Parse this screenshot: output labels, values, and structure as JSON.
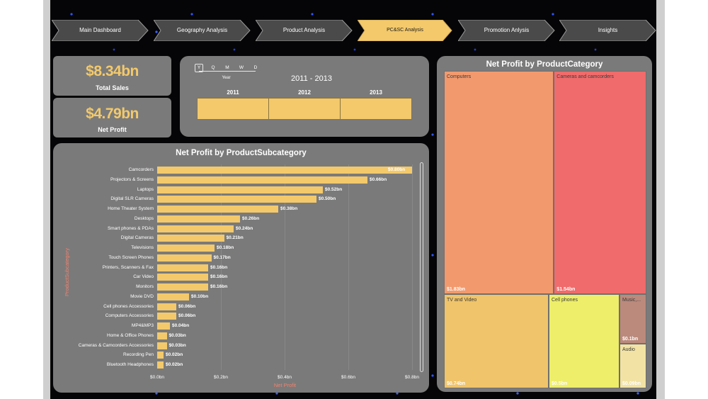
{
  "nav": {
    "items": [
      {
        "label": "Main Dashboard",
        "active": false
      },
      {
        "label": "Geography Analysis",
        "active": false
      },
      {
        "label": "Product Analysis",
        "active": false
      },
      {
        "label": "PC&SC Analysis",
        "active": true
      },
      {
        "label": "Promotion Anlysis",
        "active": false
      },
      {
        "label": "Insights",
        "active": false
      }
    ]
  },
  "kpis": {
    "total_sales": {
      "value": "$8.34bn",
      "label": "Total Sales"
    },
    "net_profit": {
      "value": "$4.79bn",
      "label": "Net Profit"
    }
  },
  "slicer": {
    "granularity": [
      "Y",
      "Q",
      "M",
      "W",
      "D"
    ],
    "selected_granularity": "Y",
    "granularity_label": "Year",
    "range_label": "2011 - 2013",
    "years": [
      "2011",
      "2012",
      "2013"
    ]
  },
  "colors": {
    "accent": "#f3c96b",
    "card": "#7a7a7a",
    "axis_title": "#f0826e"
  },
  "bar_chart": {
    "title": "Net Profit by ProductSubcategory",
    "y_axis_title": "ProductSubcategory",
    "x_axis_title": "Net Profit",
    "x_ticks": [
      "$0.0bn",
      "$0.2bn",
      "$0.4bn",
      "$0.6bn",
      "$0.8bn"
    ]
  },
  "treemap": {
    "title": "Net Profit by ProductCategory"
  },
  "chart_data": [
    {
      "type": "bar",
      "title": "Net Profit by ProductSubcategory",
      "xlabel": "Net Profit",
      "ylabel": "ProductSubcategory",
      "xlim": [
        0,
        0.8
      ],
      "categories": [
        "Camcorders",
        "Projectors & Screens",
        "Laptops",
        "Digital SLR Cameras",
        "Home Theater System",
        "Desktops",
        "Smart phones & PDAs",
        "Digital Cameras",
        "Televisions",
        "Touch Screen Phones",
        "Printers, Scanners & Fax",
        "Car Video",
        "Monitors",
        "Movie DVD",
        "Cell phones Accessories",
        "Computers Accessories",
        "MP4&MP3",
        "Home & Office Phones",
        "Cameras & Camcorders Accessories",
        "Recording Pen",
        "Bluetooth Headphones"
      ],
      "values": [
        0.8,
        0.66,
        0.52,
        0.5,
        0.38,
        0.26,
        0.24,
        0.21,
        0.18,
        0.17,
        0.16,
        0.16,
        0.16,
        0.1,
        0.06,
        0.06,
        0.04,
        0.03,
        0.03,
        0.02,
        0.02
      ],
      "value_labels": [
        "$0.80bn",
        "$0.66bn",
        "$0.52bn",
        "$0.50bn",
        "$0.38bn",
        "$0.26bn",
        "$0.24bn",
        "$0.21bn",
        "$0.18bn",
        "$0.17bn",
        "$0.16bn",
        "$0.16bn",
        "$0.16bn",
        "$0.10bn",
        "$0.06bn",
        "$0.06bn",
        "$0.04bn",
        "$0.03bn",
        "$0.03bn",
        "$0.02bn",
        "$0.02bn"
      ]
    },
    {
      "type": "treemap",
      "title": "Net Profit by ProductCategory",
      "categories": [
        "Computers",
        "Cameras and camcorders",
        "TV and Video",
        "Cell phones",
        "Music,...",
        "Audio"
      ],
      "value_labels": [
        "$1.83bn",
        "$1.54bn",
        "$0.74bn",
        "$0.5bn",
        "$0.1bn",
        "$0.09bn"
      ],
      "values": [
        1.83,
        1.54,
        0.74,
        0.5,
        0.1,
        0.09
      ],
      "colors": [
        "#f29a6e",
        "#f06b6b",
        "#f0c46a",
        "#eeee6a",
        "#bb8a7c",
        "#f2e3a4"
      ]
    }
  ]
}
